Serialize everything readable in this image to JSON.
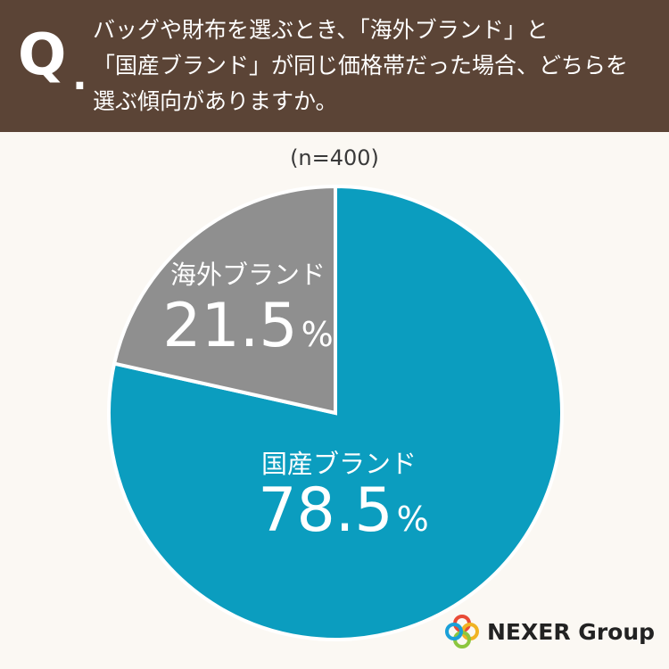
{
  "header": {
    "q_letter": "Q",
    "q_dot": ".",
    "lines": [
      "バッグや財布を選ぶとき、「海外ブランド」と",
      "「国産ブランド」が同じ価格帯だった場合、どちらを",
      "選ぶ傾向がありますか。"
    ],
    "background": "#5b4436"
  },
  "sample_size": "(n=400)",
  "chart_data": {
    "type": "pie",
    "start": "12 o'clock",
    "direction": "clockwise",
    "slices": [
      {
        "label": "国産ブランド",
        "value": 78.5,
        "value_text": "78.5",
        "unit": "%",
        "color": "#0b9dbf"
      },
      {
        "label": "海外ブランド",
        "value": 21.5,
        "value_text": "21.5",
        "unit": "%",
        "color": "#8f8f8f"
      }
    ]
  },
  "logo": {
    "text": "NEXER Group",
    "ring_colors": [
      "#e94a36",
      "#f0b323",
      "#8cc63f",
      "#1aa0d8"
    ]
  }
}
